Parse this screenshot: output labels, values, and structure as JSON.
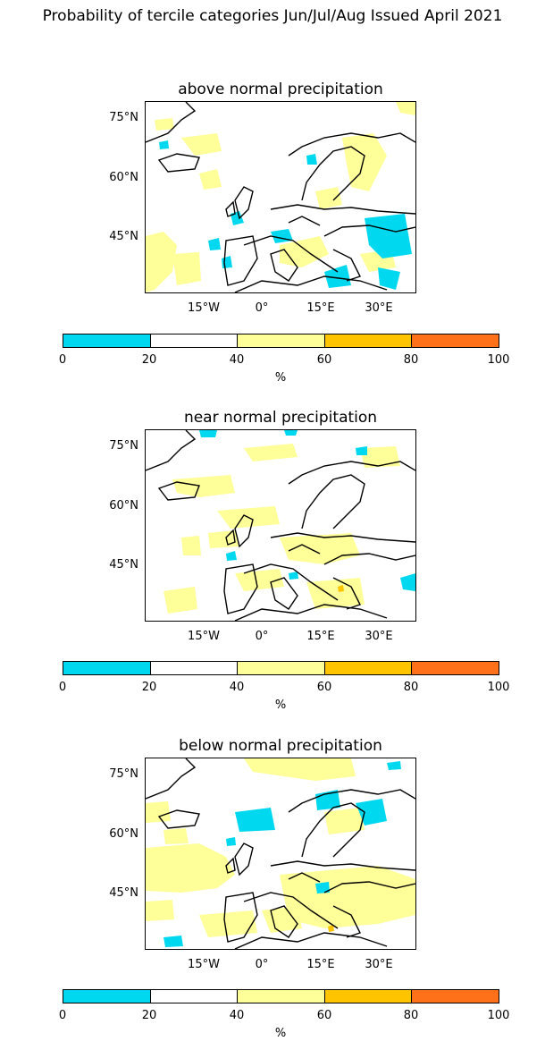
{
  "title": "Probability of tercile categories Jun/Jul/Aug Issued April 2021",
  "panels": [
    {
      "title": "above normal precipitation"
    },
    {
      "title": "near normal precipitation"
    },
    {
      "title": "below normal precipitation"
    }
  ],
  "lat_labels": [
    "75°N",
    "60°N",
    "45°N"
  ],
  "lon_labels": [
    "15°W",
    "0°",
    "15°E",
    "30°E"
  ],
  "colorbar": {
    "ticks": [
      "0",
      "20",
      "40",
      "60",
      "80",
      "100"
    ],
    "unit": "%",
    "colors": [
      "#00d8f0",
      "#ffffff",
      "#ffff99",
      "#ffc400",
      "#ff7119"
    ]
  },
  "land_color": "#ffffff",
  "coast_color": "#000000"
}
